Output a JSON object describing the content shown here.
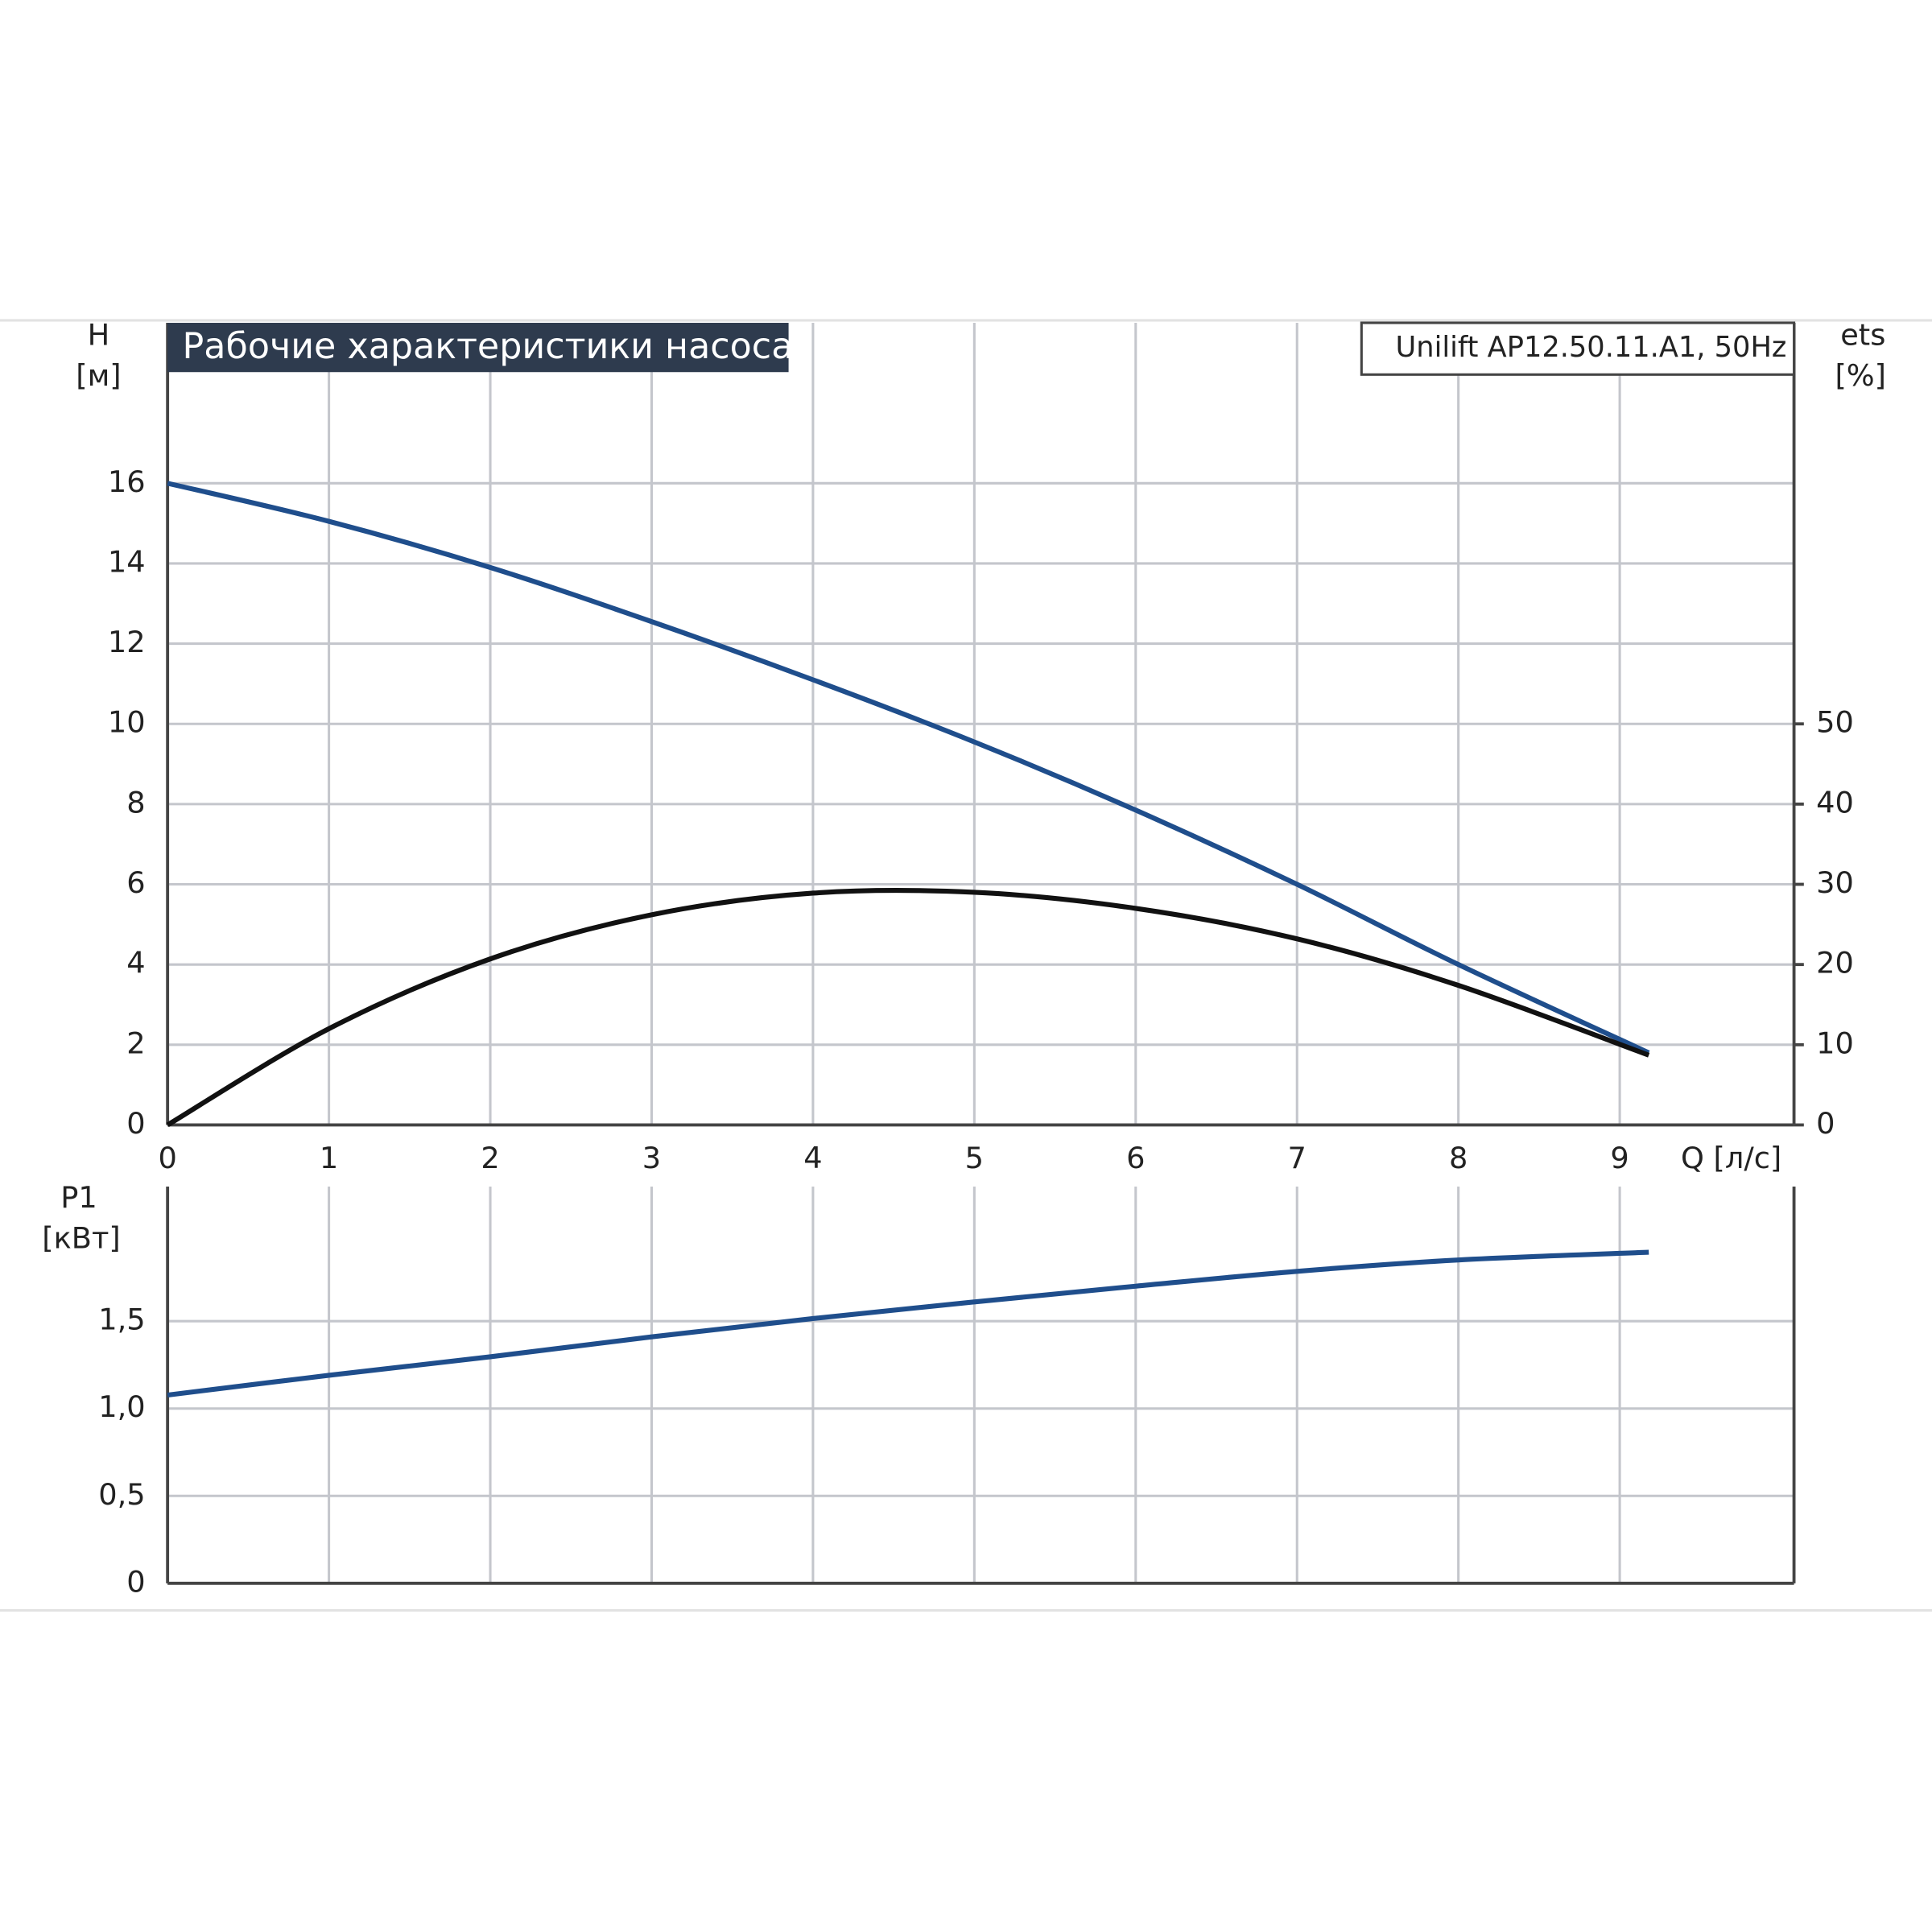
{
  "chart_data": [
    {
      "type": "line",
      "title": "Рабочие характеристики насоса",
      "subtitle": "Unilift AP12.50.11.A1, 50Hz",
      "ylabel": "H",
      "yunit": "[м]",
      "y2label": "ets",
      "y2unit": "[%]",
      "xlabel": "Q [л/с]",
      "x": [
        0,
        1,
        2,
        3,
        4,
        5,
        6,
        7,
        8,
        9.18
      ],
      "series": [
        {
          "color": "#1f4e8c",
          "values": [
            16,
            15.05,
            13.9,
            12.55,
            11.1,
            9.55,
            7.85,
            6.0,
            4.0,
            1.8
          ]
        },
        {
          "color": "#111111",
          "axis": "y2",
          "values": [
            0,
            12,
            20.7,
            26.2,
            28.9,
            29,
            27,
            23.2,
            17.4,
            8.7
          ]
        }
      ],
      "xlim": [
        0,
        10.08
      ],
      "xticks": [
        0,
        1,
        2,
        3,
        4,
        5,
        6,
        7,
        8,
        9
      ],
      "ylim": [
        0,
        20
      ],
      "yticks": [
        0,
        2,
        4,
        6,
        8,
        10,
        12,
        14,
        16
      ],
      "y2lim": [
        0,
        100
      ],
      "y2ticks": [
        0,
        10,
        20,
        30,
        40,
        50
      ],
      "grid": true
    },
    {
      "type": "line",
      "ylabel": "P1",
      "yunit": "[кВт]",
      "x": [
        0,
        1,
        2,
        3,
        4,
        5,
        6,
        7,
        8,
        9.18
      ],
      "series": [
        {
          "color": "#1f4e8c",
          "values": [
            1.077,
            1.19,
            1.296,
            1.41,
            1.515,
            1.61,
            1.7,
            1.785,
            1.85,
            1.894
          ]
        }
      ],
      "xlim": [
        0,
        10.08
      ],
      "ylim": [
        0,
        2.27
      ],
      "yticks": [
        0,
        {
          "value": 0.5,
          "label": "0,5"
        },
        {
          "value": 1.0,
          "label": "1,0"
        },
        {
          "value": 1.5,
          "label": "1,5"
        }
      ],
      "grid": true
    }
  ]
}
